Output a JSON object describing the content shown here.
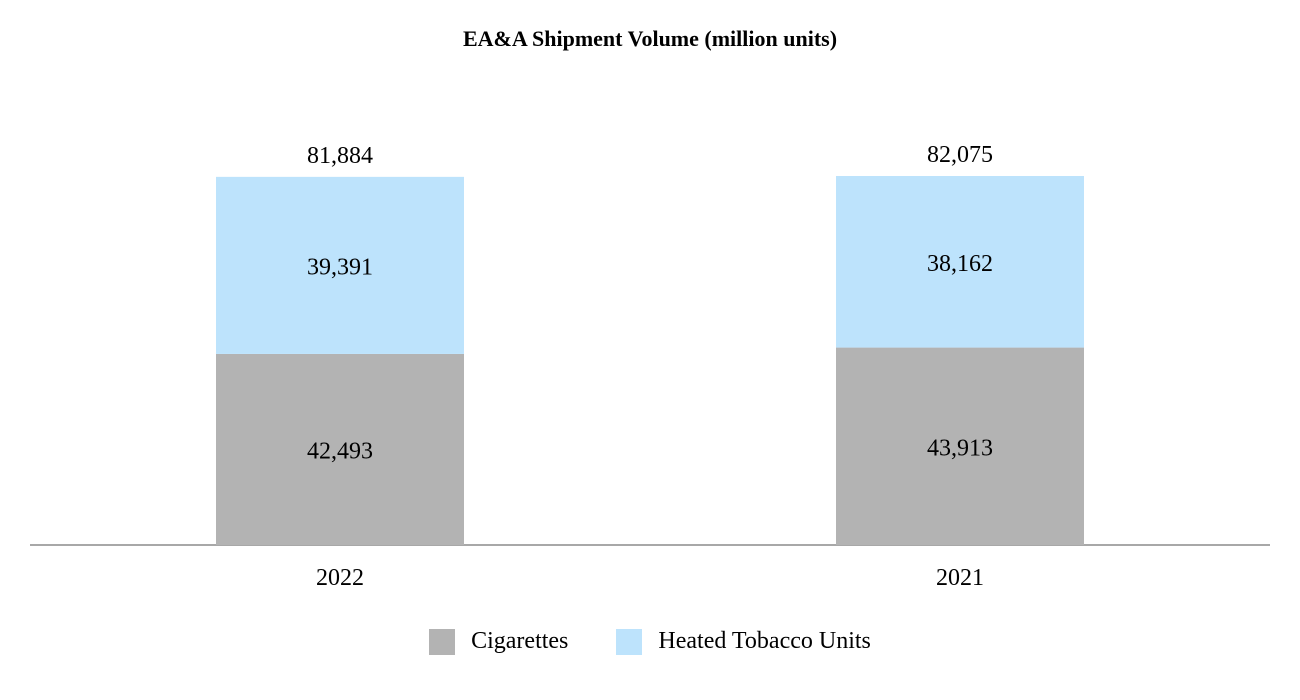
{
  "chart_data": {
    "type": "bar",
    "stacked": true,
    "title": "EA&A Shipment Volume (million units)",
    "categories": [
      "2022",
      "2021"
    ],
    "series": [
      {
        "name": "Cigarettes",
        "color": "#b3b3b3",
        "values": [
          42493,
          43913
        ],
        "labels": [
          "42,493",
          "43,913"
        ]
      },
      {
        "name": "Heated Tobacco Units",
        "color": "#bde3fc",
        "values": [
          39391,
          38162
        ],
        "labels": [
          "39,391",
          "38,162"
        ]
      }
    ],
    "totals": [
      81884,
      82075
    ],
    "total_labels": [
      "81,884",
      "82,075"
    ],
    "xlabel": "",
    "ylabel": "",
    "ylim": [
      0,
      82075
    ],
    "grid": false,
    "legend_position": "bottom-center"
  }
}
